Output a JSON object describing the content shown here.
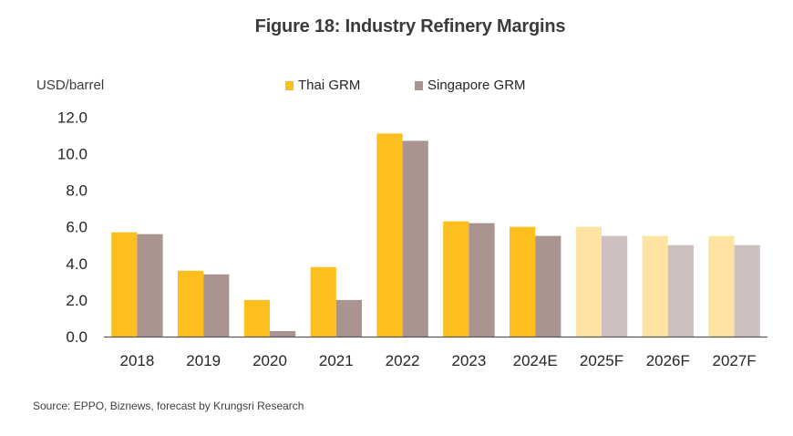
{
  "chart_data": {
    "type": "bar",
    "title": "Figure 18: Industry Refinery Margins",
    "ylabel": "USD/barrel",
    "xlabel": "",
    "ylim": [
      0,
      12
    ],
    "yticks": [
      "0.0",
      "2.0",
      "4.0",
      "6.0",
      "8.0",
      "10.0",
      "12.0"
    ],
    "ytick_values": [
      0,
      2,
      4,
      6,
      8,
      10,
      12
    ],
    "grid": false,
    "legend_position": "top-center",
    "categories": [
      "2018",
      "2019",
      "2020",
      "2021",
      "2022",
      "2023",
      "2024E",
      "2025F",
      "2026F",
      "2027F"
    ],
    "forecast_from_index": 7,
    "series": [
      {
        "name": "Thai GRM",
        "color": "#FDBF1E",
        "forecast_color": "#FEE3A2",
        "values": [
          5.7,
          3.6,
          2.0,
          3.8,
          11.1,
          6.3,
          6.0,
          6.0,
          5.5,
          5.5
        ]
      },
      {
        "name": "Singapore GRM",
        "color": "#A99490",
        "forecast_color": "#CEC0BE",
        "values": [
          5.6,
          3.4,
          0.3,
          2.0,
          10.7,
          6.2,
          5.5,
          5.5,
          5.0,
          5.0
        ]
      }
    ],
    "source": "Source: EPPO, Biznews, forecast by Krungsri Research"
  },
  "colors": {
    "axis": "#595959",
    "text": "#262626"
  }
}
